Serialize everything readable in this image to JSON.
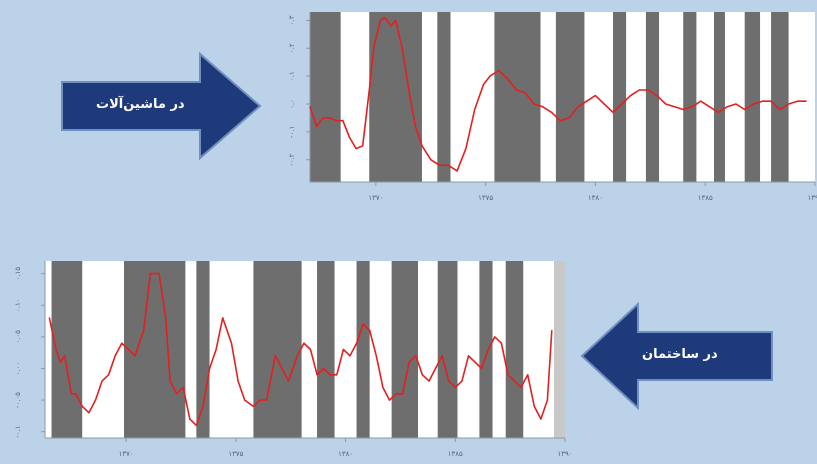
{
  "colors": {
    "background": "#bcd2e8",
    "band_dark": "#6e6e6e",
    "band_light": "#ffffff",
    "line": "#e32020",
    "arrow_fill": "#1f3a7a",
    "arrow_stroke": "#6f8fbf"
  },
  "arrows": {
    "machinery": {
      "label": "در ماشین‌آلات",
      "direction": "right",
      "icon": "arrow-right-icon"
    },
    "construction": {
      "label": "در ساختمان",
      "direction": "left",
      "icon": "arrow-left-icon"
    }
  },
  "chart_data": [
    {
      "type": "line",
      "name": "machinery",
      "x_ticks": [
        1370,
        1375,
        1380,
        1385,
        1390
      ],
      "x_tick_labels": [
        "۱۳۷۰",
        "۱۳۷۵",
        "۱۳۸۰",
        "۱۳۸۵",
        "۱۳۹۰"
      ],
      "y_ticks": [
        -0.2,
        -0.1,
        0.0,
        0.1,
        0.2,
        0.3
      ],
      "y_tick_labels": [
        "-۰.۲",
        "-۰.۱",
        "۰.۰",
        "۰.۱",
        "۰.۲",
        "۰.۳"
      ],
      "xlim": [
        1367.0,
        1390.0
      ],
      "ylim": [
        -0.28,
        0.33
      ],
      "bands": [
        [
          1367.0,
          1368.4,
          "dark"
        ],
        [
          1368.4,
          1369.7,
          "light"
        ],
        [
          1369.7,
          1372.1,
          "dark"
        ],
        [
          1372.1,
          1372.8,
          "light"
        ],
        [
          1372.8,
          1373.4,
          "dark"
        ],
        [
          1373.4,
          1375.4,
          "light"
        ],
        [
          1375.4,
          1377.5,
          "dark"
        ],
        [
          1377.5,
          1378.2,
          "light"
        ],
        [
          1378.2,
          1379.5,
          "dark"
        ],
        [
          1379.5,
          1380.8,
          "light"
        ],
        [
          1380.8,
          1381.4,
          "dark"
        ],
        [
          1381.4,
          1382.3,
          "light"
        ],
        [
          1382.3,
          1382.9,
          "dark"
        ],
        [
          1382.9,
          1384.0,
          "light"
        ],
        [
          1384.0,
          1384.6,
          "dark"
        ],
        [
          1384.6,
          1385.4,
          "light"
        ],
        [
          1385.4,
          1385.9,
          "dark"
        ],
        [
          1385.9,
          1386.8,
          "light"
        ],
        [
          1386.8,
          1387.5,
          "dark"
        ],
        [
          1387.5,
          1388.0,
          "light"
        ],
        [
          1388.0,
          1388.8,
          "dark"
        ],
        [
          1388.8,
          1390.0,
          "light"
        ]
      ],
      "x": [
        1367.0,
        1367.3,
        1367.6,
        1367.9,
        1368.2,
        1368.5,
        1368.8,
        1369.1,
        1369.4,
        1369.7,
        1369.9,
        1370.2,
        1370.4,
        1370.7,
        1370.9,
        1371.2,
        1371.5,
        1371.8,
        1372.1,
        1372.5,
        1372.9,
        1373.3,
        1373.7,
        1374.1,
        1374.5,
        1374.9,
        1375.2,
        1375.6,
        1376.0,
        1376.4,
        1376.8,
        1377.2,
        1377.6,
        1378.0,
        1378.4,
        1378.8,
        1379.2,
        1379.6,
        1380.0,
        1380.4,
        1380.8,
        1381.2,
        1381.6,
        1382.0,
        1382.4,
        1382.8,
        1383.2,
        1383.6,
        1384.0,
        1384.4,
        1384.8,
        1385.2,
        1385.6,
        1386.0,
        1386.4,
        1386.8,
        1387.2,
        1387.6,
        1388.0,
        1388.4,
        1388.8,
        1389.2,
        1389.6
      ],
      "values": [
        -0.01,
        -0.08,
        -0.05,
        -0.05,
        -0.06,
        -0.06,
        -0.12,
        -0.16,
        -0.15,
        0.05,
        0.2,
        0.3,
        0.31,
        0.28,
        0.3,
        0.2,
        0.05,
        -0.08,
        -0.15,
        -0.2,
        -0.22,
        -0.22,
        -0.24,
        -0.16,
        -0.02,
        0.07,
        0.1,
        0.12,
        0.09,
        0.05,
        0.04,
        0.0,
        -0.01,
        -0.03,
        -0.06,
        -0.05,
        -0.01,
        0.01,
        0.03,
        0.0,
        -0.03,
        0.0,
        0.03,
        0.05,
        0.05,
        0.03,
        0.0,
        -0.01,
        -0.02,
        -0.01,
        0.01,
        -0.01,
        -0.03,
        -0.01,
        0.0,
        -0.02,
        0.0,
        0.01,
        0.01,
        -0.02,
        0.0,
        0.01,
        0.01
      ]
    },
    {
      "type": "line",
      "name": "construction",
      "x_ticks": [
        1370,
        1375,
        1380,
        1385,
        1390
      ],
      "x_tick_labels": [
        "۱۳۷۰",
        "۱۳۷۵",
        "۱۳۸۰",
        "۱۳۸۵",
        "۱۳۹۰"
      ],
      "y_ticks": [
        -0.1,
        -0.05,
        0.0,
        0.05,
        0.1,
        0.15
      ],
      "y_tick_labels": [
        "-۰.۱",
        "-۰.۰۵",
        "۰.۰۰",
        "۰.۰۵",
        "۰.۱۰",
        "۰.۱۵"
      ],
      "xlim": [
        1366.3,
        1390.0
      ],
      "ylim": [
        -0.11,
        0.17
      ],
      "bands": [
        [
          1366.3,
          1366.6,
          "light"
        ],
        [
          1366.6,
          1368.0,
          "dark"
        ],
        [
          1368.0,
          1369.9,
          "light"
        ],
        [
          1369.9,
          1372.7,
          "dark"
        ],
        [
          1372.7,
          1373.2,
          "light"
        ],
        [
          1373.2,
          1373.8,
          "dark"
        ],
        [
          1373.8,
          1375.8,
          "light"
        ],
        [
          1375.8,
          1378.0,
          "dark"
        ],
        [
          1378.0,
          1378.7,
          "light"
        ],
        [
          1378.7,
          1379.5,
          "dark"
        ],
        [
          1379.5,
          1380.5,
          "light"
        ],
        [
          1380.5,
          1381.1,
          "dark"
        ],
        [
          1381.1,
          1382.1,
          "light"
        ],
        [
          1382.1,
          1383.3,
          "dark"
        ],
        [
          1383.3,
          1384.2,
          "light"
        ],
        [
          1384.2,
          1385.1,
          "dark"
        ],
        [
          1385.1,
          1386.1,
          "light"
        ],
        [
          1386.1,
          1386.7,
          "dark"
        ],
        [
          1386.7,
          1387.3,
          "light"
        ],
        [
          1387.3,
          1388.1,
          "dark"
        ],
        [
          1388.1,
          1389.5,
          "light"
        ],
        [
          1389.5,
          1390.0,
          "band_end"
        ]
      ],
      "x": [
        1366.5,
        1366.8,
        1367.0,
        1367.2,
        1367.5,
        1367.7,
        1368.0,
        1368.3,
        1368.6,
        1368.9,
        1369.2,
        1369.5,
        1369.8,
        1370.1,
        1370.4,
        1370.8,
        1371.1,
        1371.5,
        1371.8,
        1372.0,
        1372.3,
        1372.6,
        1372.9,
        1373.2,
        1373.5,
        1373.8,
        1374.1,
        1374.4,
        1374.8,
        1375.1,
        1375.4,
        1375.8,
        1376.1,
        1376.4,
        1376.8,
        1377.1,
        1377.4,
        1377.8,
        1378.1,
        1378.4,
        1378.7,
        1379.0,
        1379.3,
        1379.6,
        1379.9,
        1380.2,
        1380.5,
        1380.8,
        1381.1,
        1381.4,
        1381.7,
        1382.0,
        1382.3,
        1382.6,
        1382.9,
        1383.2,
        1383.5,
        1383.8,
        1384.1,
        1384.4,
        1384.7,
        1385.0,
        1385.3,
        1385.6,
        1385.9,
        1386.2,
        1386.5,
        1386.8,
        1387.1,
        1387.4,
        1387.7,
        1388.0,
        1388.3,
        1388.6,
        1388.9,
        1389.2,
        1389.4
      ],
      "values": [
        0.08,
        0.03,
        0.01,
        0.02,
        -0.04,
        -0.04,
        -0.06,
        -0.07,
        -0.05,
        -0.02,
        -0.01,
        0.02,
        0.04,
        0.03,
        0.02,
        0.06,
        0.15,
        0.15,
        0.08,
        -0.02,
        -0.04,
        -0.03,
        -0.08,
        -0.09,
        -0.06,
        0.0,
        0.03,
        0.08,
        0.04,
        -0.02,
        -0.05,
        -0.06,
        -0.05,
        -0.05,
        0.02,
        0.0,
        -0.02,
        0.02,
        0.04,
        0.03,
        -0.01,
        0.0,
        -0.01,
        -0.01,
        0.03,
        0.02,
        0.04,
        0.07,
        0.06,
        0.02,
        -0.03,
        -0.05,
        -0.04,
        -0.04,
        0.01,
        0.02,
        -0.01,
        -0.02,
        0.0,
        0.02,
        -0.02,
        -0.03,
        -0.02,
        0.02,
        0.01,
        0.0,
        0.03,
        0.05,
        0.04,
        -0.01,
        -0.02,
        -0.03,
        -0.01,
        -0.06,
        -0.08,
        -0.05,
        0.06
      ]
    }
  ]
}
